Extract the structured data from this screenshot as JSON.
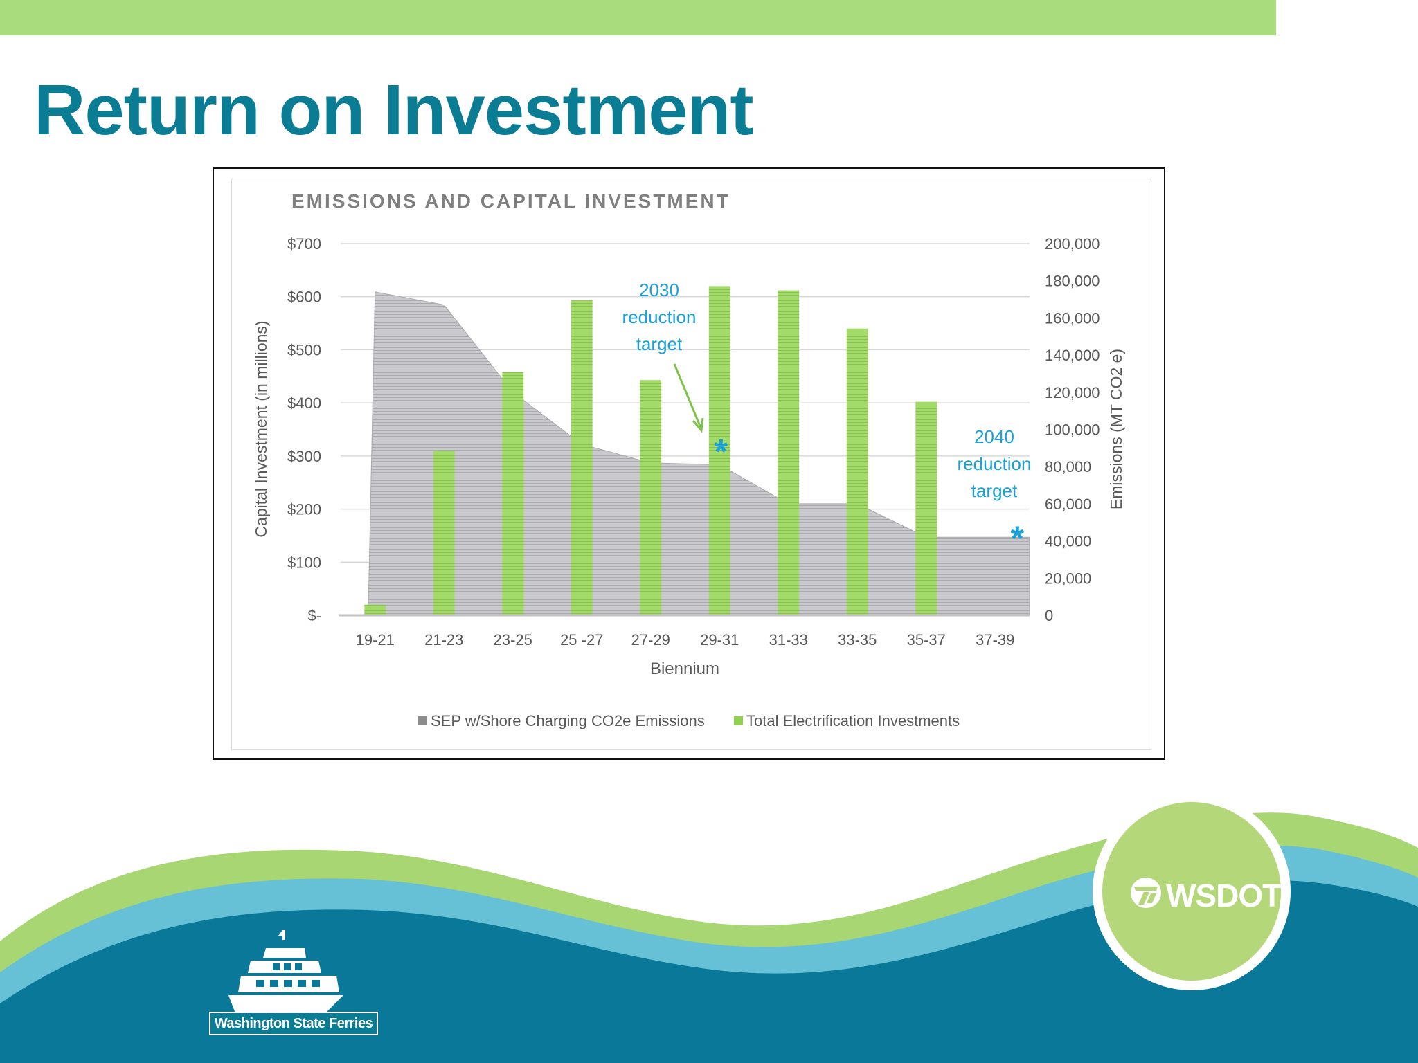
{
  "slide": {
    "title": "Return on Investment"
  },
  "colors": {
    "top_bar": "#a8dc7c",
    "title": "#0a7d95",
    "emissions_area": "#bfbfc4",
    "investment_bars": "#92d050",
    "annotation": "#1ba1d8",
    "wave_green": "#a8d672",
    "wave_light_blue": "#66c0d6",
    "wave_dark_blue": "#0a7898"
  },
  "chart_data": {
    "type": "bar",
    "title": "EMISSIONS AND CAPITAL INVESTMENT",
    "xlabel": "Biennium",
    "ylabel": "Capital Investment (in millions)",
    "y2label": "Emissions (MT CO2 e)",
    "categories": [
      "19-21",
      "21-23",
      "23-25",
      "25 -27",
      "27-29",
      "29-31",
      "31-33",
      "33-35",
      "35-37",
      "37-39"
    ],
    "ylim": [
      0,
      700
    ],
    "y2lim": [
      0,
      200000
    ],
    "yticks": [
      "$-",
      "$100",
      "$200",
      "$300",
      "$400",
      "$500",
      "$600",
      "$700"
    ],
    "y2ticks": [
      "0",
      "20,000",
      "40,000",
      "60,000",
      "80,000",
      "100,000",
      "120,000",
      "140,000",
      "160,000",
      "180,000",
      "200,000"
    ],
    "grid": true,
    "legend_position": "bottom",
    "series": [
      {
        "name": "SEP w/Shore Charging CO2e Emissions",
        "type": "area",
        "axis": "right",
        "values": [
          174000,
          167000,
          120000,
          92000,
          82000,
          81000,
          60000,
          60000,
          42000,
          42000
        ]
      },
      {
        "name": "Total Electrification Investments",
        "type": "bar",
        "axis": "left",
        "values": [
          20,
          310,
          458,
          593,
          443,
          620,
          612,
          540,
          402,
          0
        ]
      }
    ],
    "annotations": [
      {
        "text": [
          "2030",
          "reduction",
          "target"
        ],
        "category": "29-31",
        "emissions": 90000
      },
      {
        "text": [
          "2040",
          "reduction",
          "target"
        ],
        "category": "37-39",
        "emissions": 50000
      }
    ]
  },
  "logos": {
    "wsf_label": "Washington State Ferries",
    "wsdot_label": "WSDOT"
  }
}
